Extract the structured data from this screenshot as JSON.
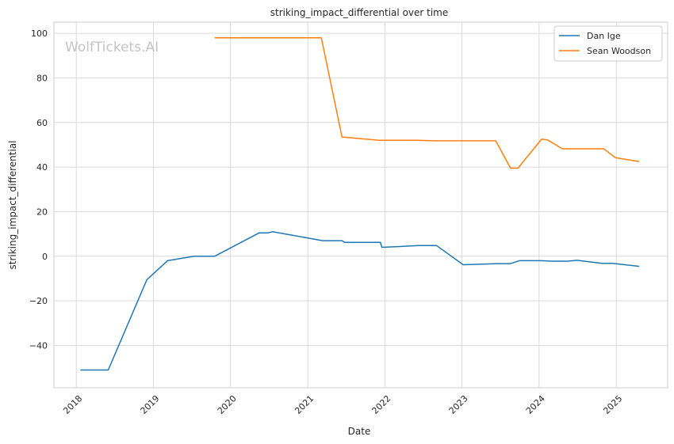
{
  "chart_data": {
    "type": "line",
    "title": "striking_impact_differential over time",
    "xlabel": "Date",
    "ylabel": "striking_impact_differential",
    "watermark": "WolfTickets.AI",
    "x_ticks": [
      "2018",
      "2019",
      "2020",
      "2021",
      "2022",
      "2023",
      "2024",
      "2025"
    ],
    "y_ticks": [
      100,
      80,
      60,
      40,
      20,
      0,
      -20,
      -40
    ],
    "xlim": [
      "2017-09-17",
      "2025-09-01"
    ],
    "ylim": [
      -59,
      105
    ],
    "grid": true,
    "legend_position": "top-right",
    "series": [
      {
        "name": "Dan Ige",
        "color": "#1f77b4",
        "points": [
          [
            "2018-01-20",
            -51
          ],
          [
            "2018-06-01",
            -51
          ],
          [
            "2018-12-01",
            -10.5
          ],
          [
            "2019-03-09",
            -2
          ],
          [
            "2019-07-13",
            0
          ],
          [
            "2019-10-18",
            0
          ],
          [
            "2020-05-16",
            10.5
          ],
          [
            "2020-06-27",
            10.5
          ],
          [
            "2020-07-18",
            11
          ],
          [
            "2021-03-13",
            7
          ],
          [
            "2021-06-12",
            7
          ],
          [
            "2021-06-26",
            6.2
          ],
          [
            "2021-12-11",
            6.2
          ],
          [
            "2021-12-18",
            4
          ],
          [
            "2022-06-11",
            4.8
          ],
          [
            "2022-09-03",
            4.8
          ],
          [
            "2023-01-07",
            -3.8
          ],
          [
            "2023-06-17",
            -3.3
          ],
          [
            "2023-08-19",
            -3.3
          ],
          [
            "2023-09-30",
            -2
          ],
          [
            "2024-01-13",
            -2
          ],
          [
            "2024-03-02",
            -2.2
          ],
          [
            "2024-05-18",
            -2.2
          ],
          [
            "2024-06-29",
            -1.8
          ],
          [
            "2024-10-26",
            -3.2
          ],
          [
            "2024-12-14",
            -3.2
          ],
          [
            "2025-04-19",
            -4.5
          ]
        ]
      },
      {
        "name": "Sean Woodson",
        "color": "#ff7f0e",
        "points": [
          [
            "2019-10-18",
            98
          ],
          [
            "2021-03-06",
            98
          ],
          [
            "2021-06-12",
            53.5
          ],
          [
            "2021-12-04",
            52
          ],
          [
            "2022-06-04",
            52
          ],
          [
            "2022-08-27",
            51.8
          ],
          [
            "2023-06-10",
            51.8
          ],
          [
            "2023-08-19",
            39.5
          ],
          [
            "2023-09-23",
            39.5
          ],
          [
            "2024-01-13",
            52.5
          ],
          [
            "2024-02-10",
            52.2
          ],
          [
            "2024-04-20",
            48.2
          ],
          [
            "2024-11-02",
            48.2
          ],
          [
            "2024-12-28",
            44.2
          ],
          [
            "2025-04-19",
            42.5
          ]
        ]
      }
    ]
  }
}
